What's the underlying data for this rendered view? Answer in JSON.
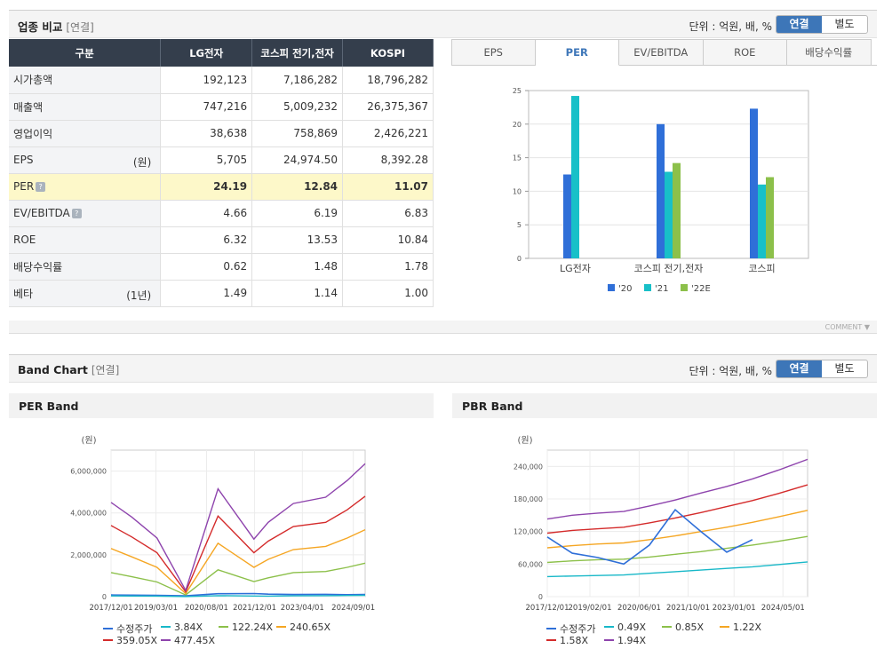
{
  "industry": {
    "title": "업종 비교",
    "sub": "[연결]",
    "unit": "단위 : 억원, 배, %",
    "toggle": [
      "연결",
      "별도"
    ],
    "columns": [
      "구분",
      "LG전자",
      "코스피 전기,전자",
      "KOSPI"
    ],
    "rows": [
      {
        "label": "시가총액",
        "unit": "",
        "values": [
          "192,123",
          "7,186,282",
          "18,796,282"
        ]
      },
      {
        "label": "매출액",
        "unit": "",
        "values": [
          "747,216",
          "5,009,232",
          "26,375,367"
        ]
      },
      {
        "label": "영업이익",
        "unit": "",
        "values": [
          "38,638",
          "758,869",
          "2,426,221"
        ]
      },
      {
        "label": "EPS",
        "unit": "(원)",
        "values": [
          "5,705",
          "24,974.50",
          "8,392.28"
        ]
      },
      {
        "label": "PER",
        "unit": "",
        "values": [
          "24.19",
          "12.84",
          "11.07"
        ]
      },
      {
        "label": "EV/EBITDA",
        "unit": "",
        "values": [
          "4.66",
          "6.19",
          "6.83"
        ]
      },
      {
        "label": "ROE",
        "unit": "",
        "values": [
          "6.32",
          "13.53",
          "10.84"
        ]
      },
      {
        "label": "배당수익률",
        "unit": "",
        "values": [
          "0.62",
          "1.48",
          "1.78"
        ]
      },
      {
        "label": "베타",
        "unit": "(1년)",
        "values": [
          "1.49",
          "1.14",
          "1.00"
        ]
      }
    ],
    "info_icon": "?",
    "tabs": [
      "EPS",
      "PER",
      "EV/EBITDA",
      "ROE",
      "배당수익률"
    ],
    "active_tab": "PER"
  },
  "comment_label": "COMMENT",
  "band": {
    "title": "Band Chart",
    "sub": "[연결]",
    "unit": "단위 : 억원, 배, %",
    "toggle": [
      "연결",
      "별도"
    ]
  },
  "chart_data": [
    {
      "type": "bar",
      "categories": [
        "LG전자",
        "코스피 전기,전자",
        "코스피"
      ],
      "series": [
        {
          "name": "'20",
          "color": "#2f6fd8",
          "values": [
            12.5,
            20.0,
            22.3
          ]
        },
        {
          "name": "'21",
          "color": "#18c0c8",
          "values": [
            24.2,
            12.9,
            11.0
          ]
        },
        {
          "name": "'22E",
          "color": "#8cc04a",
          "values": [
            null,
            14.2,
            12.1
          ]
        }
      ],
      "ylim": [
        0,
        25
      ],
      "yticks": [
        0,
        5,
        10,
        15,
        20,
        25
      ]
    },
    {
      "type": "line",
      "title": "PER Band",
      "ylabel": "(원)",
      "ylim": [
        0,
        7000000
      ],
      "yticks": [
        0,
        2000000,
        4000000,
        6000000
      ],
      "ytick_labels": [
        "0",
        "2,000,000",
        "4,000,000",
        "6,000,000"
      ],
      "xlim": [
        2017.92,
        2025.0
      ],
      "xticks": [
        2017.92,
        2019.17,
        2020.58,
        2021.92,
        2023.25,
        2024.67
      ],
      "xtick_labels": [
        "2017/12/01",
        "2019/03/01",
        "2020/08/01",
        "2021/12/01",
        "2023/04/01",
        "2024/09/01"
      ],
      "x": [
        2017.92,
        2018.5,
        2019.2,
        2020.0,
        2020.9,
        2021.9,
        2022.3,
        2023.0,
        2023.9,
        2024.5,
        2025.0
      ],
      "series": [
        {
          "name": "수정주가",
          "color": "#2f6fd8",
          "values": [
            80000,
            70000,
            60000,
            40000,
            140000,
            150000,
            120000,
            100000,
            110000,
            95000,
            100000
          ]
        },
        {
          "name": "3.84X",
          "color": "#18b8c8",
          "values": [
            35000,
            30000,
            25000,
            3000,
            45000,
            30000,
            25000,
            40000,
            45000,
            55000,
            65000
          ]
        },
        {
          "name": "122.24X",
          "color": "#8cc04a",
          "values": [
            1150000,
            950000,
            700000,
            80000,
            1280000,
            720000,
            900000,
            1150000,
            1200000,
            1400000,
            1600000
          ]
        },
        {
          "name": "240.65X",
          "color": "#f5a623",
          "values": [
            2300000,
            1900000,
            1400000,
            150000,
            2550000,
            1400000,
            1780000,
            2250000,
            2400000,
            2800000,
            3200000
          ]
        },
        {
          "name": "359.05X",
          "color": "#d42b2b",
          "values": [
            3400000,
            2850000,
            2100000,
            230000,
            3850000,
            2100000,
            2650000,
            3350000,
            3550000,
            4150000,
            4800000
          ]
        },
        {
          "name": "477.45X",
          "color": "#8e44ad",
          "values": [
            4500000,
            3800000,
            2800000,
            300000,
            5150000,
            2750000,
            3550000,
            4450000,
            4750000,
            5550000,
            6350000
          ]
        }
      ]
    },
    {
      "type": "line",
      "title": "PBR Band",
      "ylabel": "(원)",
      "ylim": [
        0,
        270000
      ],
      "yticks": [
        0,
        60000,
        120000,
        180000,
        240000
      ],
      "ytick_labels": [
        "0",
        "60,000",
        "120,000",
        "180,000",
        "240,000"
      ],
      "xlim": [
        2017.92,
        2025.0
      ],
      "xticks": [
        2017.92,
        2019.08,
        2020.42,
        2021.75,
        2023.0,
        2024.33
      ],
      "xtick_labels": [
        "2017/12/01",
        "2019/02/01",
        "2020/06/01",
        "2021/10/01",
        "2023/01/01",
        "2024/05/01"
      ],
      "x": [
        2017.92,
        2018.6,
        2019.3,
        2020.0,
        2020.7,
        2021.4,
        2022.1,
        2022.8,
        2023.5,
        2024.2,
        2025.0
      ],
      "series": [
        {
          "name": "0.49X",
          "color": "#18b8c8",
          "values": [
            37000,
            38000,
            39000,
            40000,
            43000,
            46000,
            49000,
            52000,
            55000,
            59000,
            64000
          ]
        },
        {
          "name": "0.85X",
          "color": "#8cc04a",
          "values": [
            63000,
            66000,
            68000,
            69000,
            73000,
            78000,
            83000,
            89000,
            95000,
            102000,
            111000
          ]
        },
        {
          "name": "1.22X",
          "color": "#f5a623",
          "values": [
            90000,
            94000,
            97000,
            99000,
            105000,
            112000,
            120000,
            128000,
            137000,
            147000,
            159000
          ]
        },
        {
          "name": "1.58X",
          "color": "#d42b2b",
          "values": [
            117000,
            122000,
            125000,
            128000,
            136000,
            145000,
            155000,
            166000,
            177000,
            190000,
            206000
          ]
        },
        {
          "name": "1.94X",
          "color": "#8e44ad",
          "values": [
            143000,
            150000,
            154000,
            157000,
            167000,
            178000,
            191000,
            203000,
            217000,
            233000,
            253000
          ]
        },
        {
          "name": "수정주가",
          "color": "#2f6fd8",
          "values": [
            110000,
            80000,
            72000,
            60000,
            95000,
            160000,
            120000,
            82000,
            105000,
            null,
            null
          ]
        }
      ]
    }
  ]
}
